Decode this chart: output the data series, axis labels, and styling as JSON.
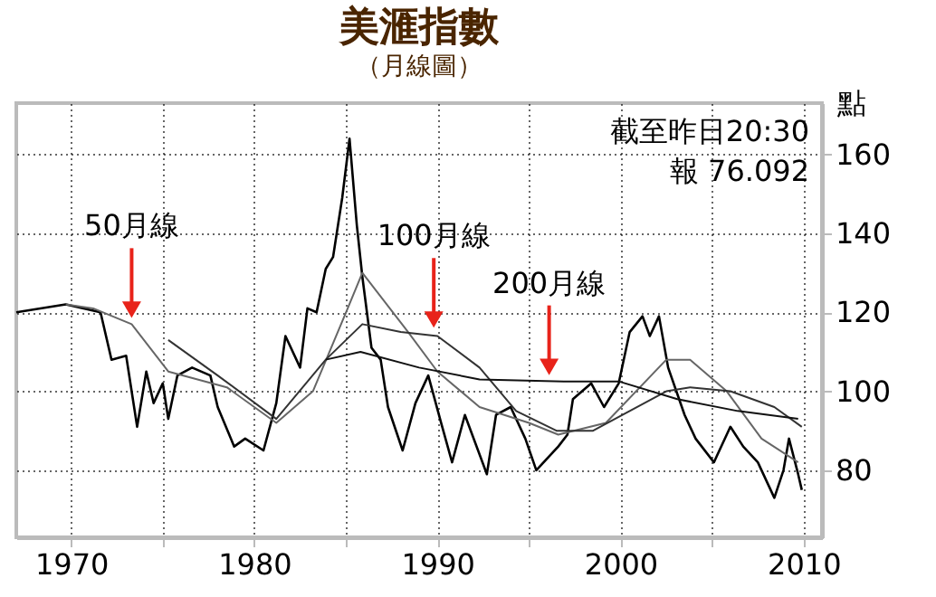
{
  "chart_data": {
    "type": "line",
    "title": "美滙指數",
    "subtitle": "（月線圖）",
    "ylabel": "點",
    "xlim": [
      1967,
      2011
    ],
    "ylim": [
      63,
      173
    ],
    "xticks": [
      1970,
      {
        "value": 1975,
        "label": null
      },
      1980,
      {
        "value": 1985,
        "label": null
      },
      1990,
      {
        "value": 1995,
        "label": null
      },
      2000,
      {
        "value": 2005,
        "label": null
      },
      2010
    ],
    "yticks": [
      80,
      100,
      120,
      140,
      160
    ],
    "grid": true,
    "marker": "none",
    "line_style": "solid",
    "series": [
      {
        "color": "#000000",
        "x": [
          1967,
          1969.7,
          1971.6,
          1972.2,
          1973,
          1973.6,
          1974.1,
          1974.5,
          1975,
          1975.3,
          1975.8,
          1976.6,
          1977.6,
          1978,
          1978.9,
          1979.5,
          1980.5,
          1981.2,
          1981.7,
          1982.5,
          1982.9,
          1983.4,
          1983.9,
          1984.3,
          1984.8,
          1985.2,
          1985.6,
          1985.9,
          1986.4,
          1986.9,
          1987.3,
          1988.1,
          1988.8,
          1989.5,
          1990.2,
          1990.8,
          1991.5,
          1992.7,
          1993.2,
          1994,
          1994.8,
          1995.4,
          1996.6,
          1997.1,
          1997.4,
          1998.4,
          1999.1,
          1999.9,
          2000.5,
          2001.2,
          2001.6,
          2002.1,
          2002.6,
          2003.5,
          2004.1,
          2005.1,
          2006,
          2006.7,
          2007.5,
          2008.4,
          2008.9,
          2009.2,
          2009.7,
          2009.9
        ],
        "values": [
          120,
          122,
          120,
          108,
          109,
          91,
          105,
          97,
          102,
          93,
          104,
          106,
          104,
          96,
          86,
          88,
          85,
          97,
          114,
          106,
          121,
          120,
          131,
          134,
          149,
          164,
          142,
          129,
          111,
          108,
          96,
          85,
          97,
          104,
          92,
          82,
          94,
          79,
          94,
          96,
          88,
          80,
          86,
          89,
          98,
          102,
          96,
          102,
          115,
          119,
          114,
          119,
          106,
          94,
          88,
          82,
          91,
          86,
          82,
          73,
          80,
          88,
          79,
          75
        ]
      },
      {
        "color": "#666666",
        "x": [
          1969.7,
          1971.2,
          1973.3,
          1975.3,
          1978.5,
          1981.2,
          1983.2,
          1985.1,
          1985.9,
          1988.4,
          1990,
          1992.3,
          1995,
          1996.6,
          1999.2,
          2002.5,
          2003.8,
          2005.8,
          2007.7,
          2009.7
        ],
        "values": [
          122,
          121,
          117,
          105,
          101,
          92,
          100,
          121,
          130,
          115,
          105,
          96,
          92,
          89,
          92,
          108,
          108,
          100,
          88,
          82
        ]
      },
      {
        "color": "#333333",
        "x": [
          1975.3,
          1978,
          1981.2,
          1983.9,
          1985.9,
          1988,
          1990,
          1992.3,
          1994.3,
          1996.5,
          1998.5,
          2000.5,
          2002.5,
          2003.8,
          2006,
          2008.4,
          2009.9
        ],
        "values": [
          113,
          104,
          93,
          108,
          117,
          115,
          114,
          106,
          95,
          90,
          90,
          95,
          100,
          101,
          100,
          96,
          91
        ]
      },
      {
        "color": "#111111",
        "x": [
          1983.9,
          1985.8,
          1989,
          1992.3,
          1996.9,
          1999.9,
          2003.1,
          2006.4,
          2009.7
        ],
        "values": [
          108,
          110,
          106,
          103,
          102.5,
          102.5,
          98,
          95,
          93
        ]
      }
    ],
    "annotations": [
      {
        "text": "50月線",
        "x": 1973.3,
        "y": 117
      },
      {
        "text": "100月線",
        "x": 1989.8,
        "y": 114.5
      },
      {
        "text": "200月線",
        "x": 1996.1,
        "y": 102.5
      },
      "截至昨日20:30",
      "報 76.092"
    ]
  }
}
